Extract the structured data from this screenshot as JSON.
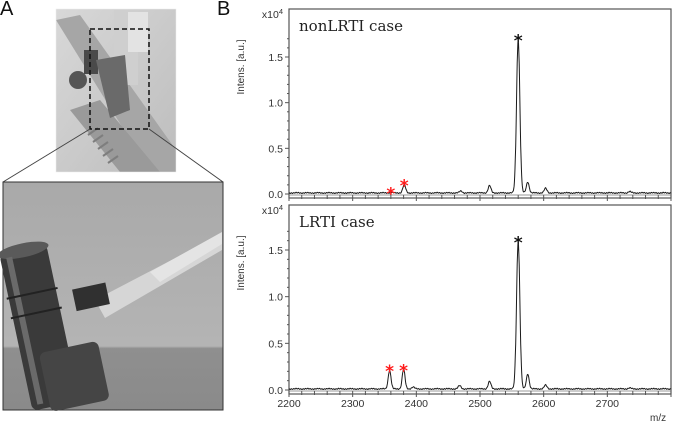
{
  "figure": {
    "panel_a_label": "A",
    "panel_b_label": "B",
    "photo_top_alt": "Ventilator circuit with sampling port (dashed box marks zoom region)",
    "photo_bottom_alt": "Close-up of T-shaped airway adapter connected to sampling tube"
  },
  "colors": {
    "trace": "#1a1a1a",
    "axis": "#555555",
    "red_marker": "#ff1a1a",
    "black_marker": "#111111"
  },
  "axes": {
    "ylabel": "Intens. [a.u.]",
    "yscale": "x10",
    "yscale_exp": "4",
    "xlabel": "m/z",
    "xticks": [
      "2200",
      "2300",
      "2400",
      "2500",
      "2600",
      "2700"
    ],
    "yticks": [
      "0.0",
      "0.5",
      "1.0",
      "1.5"
    ]
  },
  "chart_data": [
    {
      "type": "line",
      "title": "nonLRTI case",
      "xlabel": "m/z",
      "ylabel": "Intens. [a.u.] x10^4",
      "xlim": [
        2200,
        2800
      ],
      "ylim": [
        0,
        1.8
      ],
      "peaks": [
        {
          "mz": 2360,
          "intensity": 0.005,
          "marker": "red-asterisk"
        },
        {
          "mz": 2381,
          "intensity": 0.09,
          "marker": "red-asterisk"
        },
        {
          "mz": 2470,
          "intensity": 0.02
        },
        {
          "mz": 2515,
          "intensity": 0.08
        },
        {
          "mz": 2560,
          "intensity": 1.68,
          "marker": "black-asterisk"
        },
        {
          "mz": 2575,
          "intensity": 0.12
        },
        {
          "mz": 2603,
          "intensity": 0.05
        },
        {
          "mz": 2735,
          "intensity": 0.015
        }
      ]
    },
    {
      "type": "line",
      "title": "LRTI case",
      "xlabel": "m/z",
      "ylabel": "Intens. [a.u.] x10^4",
      "xlim": [
        2200,
        2800
      ],
      "ylim": [
        0,
        1.8
      ],
      "peaks": [
        {
          "mz": 2358,
          "intensity": 0.2,
          "marker": "red-asterisk"
        },
        {
          "mz": 2380,
          "intensity": 0.21,
          "marker": "red-asterisk"
        },
        {
          "mz": 2395,
          "intensity": 0.02
        },
        {
          "mz": 2468,
          "intensity": 0.035
        },
        {
          "mz": 2515,
          "intensity": 0.08
        },
        {
          "mz": 2560,
          "intensity": 1.58,
          "marker": "black-asterisk"
        },
        {
          "mz": 2575,
          "intensity": 0.16
        },
        {
          "mz": 2603,
          "intensity": 0.04
        },
        {
          "mz": 2735,
          "intensity": 0.01
        }
      ]
    }
  ]
}
